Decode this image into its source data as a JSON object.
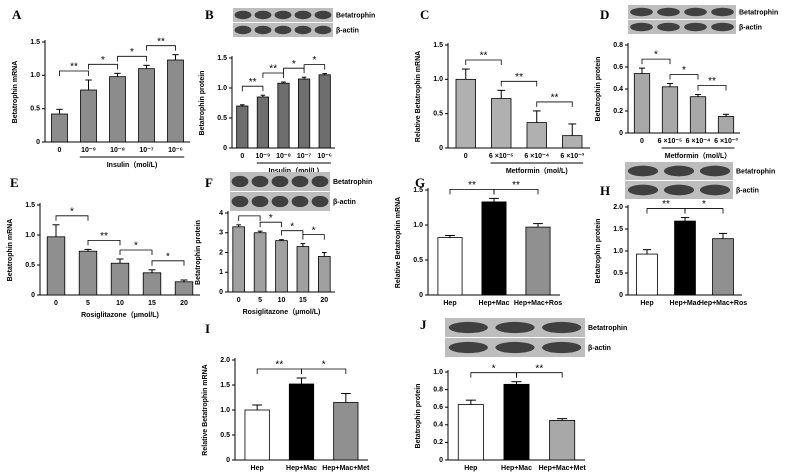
{
  "chart_data": [
    {
      "type": "bar",
      "panel": "A",
      "ylabel": "Betatrophin mRNA",
      "xlabel": "Insulin（mol/L)",
      "categories": [
        "0",
        "10⁻⁹",
        "10⁻⁸",
        "10⁻⁷",
        "10⁻⁶"
      ],
      "values": [
        0.42,
        0.78,
        0.98,
        1.1,
        1.23
      ],
      "errors": [
        0.07,
        0.15,
        0.05,
        0.05,
        0.08
      ],
      "color": "#8c8c8c",
      "ylim": [
        0,
        1.5
      ],
      "yticks": [
        0,
        0.5,
        {
          "value": 1,
          "label": "1.0"
        },
        1.5
      ],
      "significance": [
        {
          "label": "**",
          "pair": [
            "0",
            "10⁻⁹"
          ]
        },
        {
          "label": "*",
          "pair": [
            "10⁻⁹",
            "10⁻⁸"
          ]
        },
        {
          "label": "*",
          "pair": [
            "10⁻⁸",
            "10⁻⁷"
          ]
        },
        {
          "label": "**",
          "pair": [
            "10⁻⁷",
            "10⁻⁶"
          ]
        }
      ]
    },
    {
      "type": "bar",
      "panel": "B",
      "ylabel": "Betatrophin protein",
      "xlabel": "Insulin（mol/L)",
      "blot_labels": [
        "Betatrophin",
        "β-actin"
      ],
      "categories": [
        "0",
        "10⁻⁹",
        "10⁻⁸",
        "10⁻⁷",
        "10⁻⁶"
      ],
      "values": [
        0.7,
        0.85,
        1.08,
        1.15,
        1.22
      ],
      "errors": [
        0.02,
        0.03,
        0.02,
        0.03,
        0.02
      ],
      "color": "#6e6e6e",
      "ylim": [
        0,
        1.5
      ],
      "yticks": [
        0,
        0.5,
        {
          "value": 1,
          "label": "1.0"
        },
        1.5
      ],
      "significance": [
        {
          "label": "**",
          "pair": [
            "0",
            "10⁻⁹"
          ]
        },
        {
          "label": "**",
          "pair": [
            "10⁻⁹",
            "10⁻⁸"
          ]
        },
        {
          "label": "*",
          "pair": [
            "10⁻⁸",
            "10⁻⁷"
          ]
        },
        {
          "label": "*",
          "pair": [
            "10⁻⁷",
            "10⁻⁶"
          ]
        }
      ]
    },
    {
      "type": "bar",
      "panel": "C",
      "ylabel": "Relative Betatrophin mRNA",
      "xlabel": "Metformin（mol/L)",
      "categories": [
        "0",
        "6 ×10⁻⁵",
        "6 ×10⁻⁴",
        "6 ×10⁻³"
      ],
      "values": [
        1.0,
        0.72,
        0.37,
        0.18
      ],
      "errors": [
        0.15,
        0.12,
        0.17,
        0.17
      ],
      "color": "#b0b0b0",
      "ylim": [
        0,
        1.5
      ],
      "yticks": [
        0,
        0.5,
        {
          "value": 1,
          "label": "1.0"
        },
        1.5
      ],
      "significance": [
        {
          "label": "**",
          "pair": [
            "0",
            "6 ×10⁻⁵"
          ]
        },
        {
          "label": "**",
          "pair": [
            "6 ×10⁻⁵",
            "6 ×10⁻⁴"
          ]
        },
        {
          "label": "**",
          "pair": [
            "6 ×10⁻⁴",
            "6 ×10⁻³"
          ]
        }
      ]
    },
    {
      "type": "bar",
      "panel": "D",
      "ylabel": "Betatrophin protein",
      "xlabel": "Metformin（mol/L）",
      "blot_labels": [
        "Betatrophin",
        "β-actin"
      ],
      "categories": [
        "0",
        "6 ×10⁻⁵",
        "6 ×10⁻⁴",
        "6 ×10⁻³"
      ],
      "values": [
        0.54,
        0.42,
        0.33,
        0.15
      ],
      "errors": [
        0.05,
        0.03,
        0.02,
        0.02
      ],
      "color": "#a8a8a8",
      "ylim": [
        0,
        0.8
      ],
      "yticks": [
        0,
        0.2,
        0.4,
        0.6,
        0.8
      ],
      "significance": [
        {
          "label": "*",
          "pair": [
            "0",
            "6 ×10⁻⁵"
          ]
        },
        {
          "label": "*",
          "pair": [
            "6 ×10⁻⁵",
            "6 ×10⁻⁴"
          ]
        },
        {
          "label": "**",
          "pair": [
            "6 ×10⁻⁴",
            "6 ×10⁻³"
          ]
        }
      ]
    },
    {
      "type": "bar",
      "panel": "E",
      "ylabel": "Betatrophin mRNA",
      "xlabel": "Rosiglitazone（μmol/L)",
      "categories": [
        "0",
        "5",
        "10",
        "15",
        "20"
      ],
      "values": [
        0.97,
        0.73,
        0.53,
        0.37,
        0.22
      ],
      "errors": [
        0.2,
        0.03,
        0.07,
        0.05,
        0.03
      ],
      "color": "#8f8f8f",
      "ylim": [
        0,
        1.5
      ],
      "yticks": [
        0,
        0.5,
        {
          "value": 1,
          "label": "1.0"
        },
        1.5
      ],
      "significance": [
        {
          "label": "*",
          "pair": [
            "0",
            "5"
          ]
        },
        {
          "label": "**",
          "pair": [
            "5",
            "10"
          ]
        },
        {
          "label": "*",
          "pair": [
            "10",
            "15"
          ]
        },
        {
          "label": "*",
          "pair": [
            "15",
            "20"
          ]
        }
      ]
    },
    {
      "type": "bar",
      "panel": "F",
      "ylabel": "Betatrophin protein",
      "xlabel": "Rosiglitazone（μmol/L)",
      "blot_labels": [
        "Betatrophin",
        "β-actin"
      ],
      "categories": [
        "0",
        "5",
        "10",
        "15",
        "20"
      ],
      "values": [
        3.3,
        3.0,
        2.6,
        2.3,
        1.8
      ],
      "errors": [
        0.1,
        0.08,
        0.05,
        0.15,
        0.2
      ],
      "color": "#a0a0a0",
      "ylim": [
        0,
        4
      ],
      "yticks": [
        0,
        1,
        2,
        3,
        4
      ],
      "significance": [
        {
          "label": "*",
          "pair": [
            "0",
            "5"
          ]
        },
        {
          "label": "*",
          "pair": [
            "5",
            "10"
          ]
        },
        {
          "label": "*",
          "pair": [
            "10",
            "15"
          ]
        },
        {
          "label": "*",
          "pair": [
            "15",
            "20"
          ]
        }
      ]
    },
    {
      "type": "bar",
      "panel": "G",
      "ylabel": "Relative Betatrophin mRNA",
      "categories": [
        "Hep",
        "Hep+Mac",
        "Hep+Mac+Ros"
      ],
      "values": [
        0.82,
        1.33,
        0.97
      ],
      "errors": [
        0.03,
        0.05,
        0.05
      ],
      "colors": [
        "#ffffff",
        "#000000",
        "#909090"
      ],
      "ylim": [
        0,
        1.5
      ],
      "yticks": [
        0,
        0.5,
        {
          "value": 1,
          "label": "1.0"
        },
        1.5
      ],
      "significance": [
        {
          "label": "**",
          "pair": [
            "Hep",
            "Hep+Mac"
          ]
        },
        {
          "label": "**",
          "pair": [
            "Hep+Mac",
            "Hep+Mac+Ros"
          ]
        }
      ]
    },
    {
      "type": "bar",
      "panel": "H",
      "ylabel": "Betatrophin protein",
      "blot_labels": [
        "Betatrophin",
        "β-actin"
      ],
      "categories": [
        "Hep",
        "Hep+Mac",
        "Hep+Mac+Ros"
      ],
      "values": [
        0.93,
        1.68,
        1.28
      ],
      "errors": [
        0.1,
        0.08,
        0.12
      ],
      "colors": [
        "#ffffff",
        "#000000",
        "#909090"
      ],
      "ylim": [
        0,
        2
      ],
      "yticks": [
        0,
        0.5,
        {
          "value": 1,
          "label": "1.0"
        },
        1.5,
        {
          "value": 2,
          "label": "2.0"
        }
      ],
      "significance": [
        {
          "label": "**",
          "pair": [
            "Hep",
            "Hep+Mac"
          ]
        },
        {
          "label": "*",
          "pair": [
            "Hep+Mac",
            "Hep+Mac+Ros"
          ]
        }
      ]
    },
    {
      "type": "bar",
      "panel": "I",
      "ylabel": "Relative Betatrophin mRNA",
      "categories": [
        "Hep",
        "Hep+Mac",
        "Hep+Mac+Met"
      ],
      "values": [
        1.0,
        1.52,
        1.15
      ],
      "errors": [
        0.1,
        0.12,
        0.18
      ],
      "colors": [
        "#ffffff",
        "#000000",
        "#909090"
      ],
      "ylim": [
        0,
        2
      ],
      "yticks": [
        0,
        0.5,
        {
          "value": 1,
          "label": "1.0"
        },
        1.5,
        {
          "value": 2,
          "label": "2.0"
        }
      ],
      "significance": [
        {
          "label": "**",
          "pair": [
            "Hep",
            "Hep+Mac"
          ]
        },
        {
          "label": "*",
          "pair": [
            "Hep+Mac",
            "Hep+Mac+Met"
          ]
        }
      ]
    },
    {
      "type": "bar",
      "panel": "J",
      "ylabel": "Betatrophin protein",
      "blot_labels": [
        "Betatrophin",
        "β-actin"
      ],
      "categories": [
        "Hep",
        "Hep+Mac",
        "Hep+Mac+Met"
      ],
      "values": [
        0.63,
        0.86,
        0.45
      ],
      "errors": [
        0.05,
        0.03,
        0.02
      ],
      "colors": [
        "#ffffff",
        "#000000",
        "#a8a8a8"
      ],
      "ylim": [
        0,
        1
      ],
      "yticks": [
        0,
        0.2,
        0.4,
        0.6,
        0.8,
        {
          "value": 1,
          "label": "1.0"
        }
      ],
      "significance": [
        {
          "label": "*",
          "pair": [
            "Hep",
            "Hep+Mac"
          ]
        },
        {
          "label": "**",
          "pair": [
            "Hep+Mac",
            "Hep+Mac+Met"
          ]
        }
      ]
    }
  ]
}
